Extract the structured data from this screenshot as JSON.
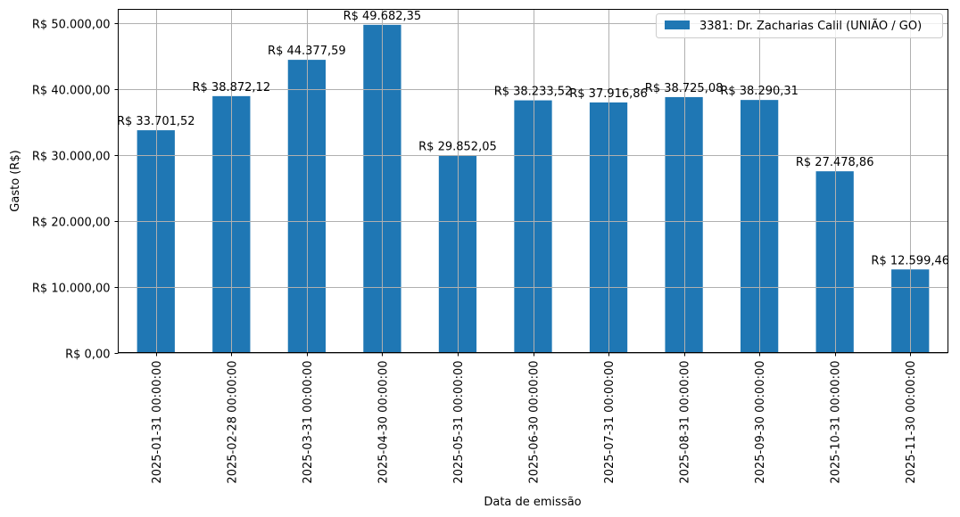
{
  "chart_data": {
    "type": "bar",
    "title": "",
    "xlabel": "Data de emissão",
    "ylabel": "Gasto (R$)",
    "ylim": [
      0,
      52000
    ],
    "grid": true,
    "legend_position": "upper right",
    "categories": [
      "2025-01-31 00:00:00",
      "2025-02-28 00:00:00",
      "2025-03-31 00:00:00",
      "2025-04-30 00:00:00",
      "2025-05-31 00:00:00",
      "2025-06-30 00:00:00",
      "2025-07-31 00:00:00",
      "2025-08-31 00:00:00",
      "2025-09-30 00:00:00",
      "2025-10-31 00:00:00",
      "2025-11-30 00:00:00"
    ],
    "series": [
      {
        "name": "3381: Dr. Zacharias Calil (UNIÃO / GO)",
        "color": "#1f77b4",
        "values": [
          33701.52,
          38872.12,
          44377.59,
          49682.35,
          29852.05,
          38233.52,
          37916.86,
          38725.08,
          38290.31,
          27478.86,
          12599.46
        ],
        "labels": [
          "R$ 33.701,52",
          "R$ 38.872,12",
          "R$ 44.377,59",
          "R$ 49.682,35",
          "R$ 29.852,05",
          "R$ 38.233,52",
          "R$ 37.916,86",
          "R$ 38.725,08",
          "R$ 38.290,31",
          "R$ 27.478,86",
          "R$ 12.599,46"
        ]
      }
    ],
    "yticks": [
      0,
      10000,
      20000,
      30000,
      40000,
      50000
    ],
    "ytick_labels": [
      "R$ 0,00",
      "R$ 10.000,00",
      "R$ 20.000,00",
      "R$ 30.000,00",
      "R$ 40.000,00",
      "R$ 50.000,00"
    ]
  },
  "colors": {
    "bar": "#1f77b4",
    "grid": "#b0b0b0",
    "axis": "#000000"
  }
}
